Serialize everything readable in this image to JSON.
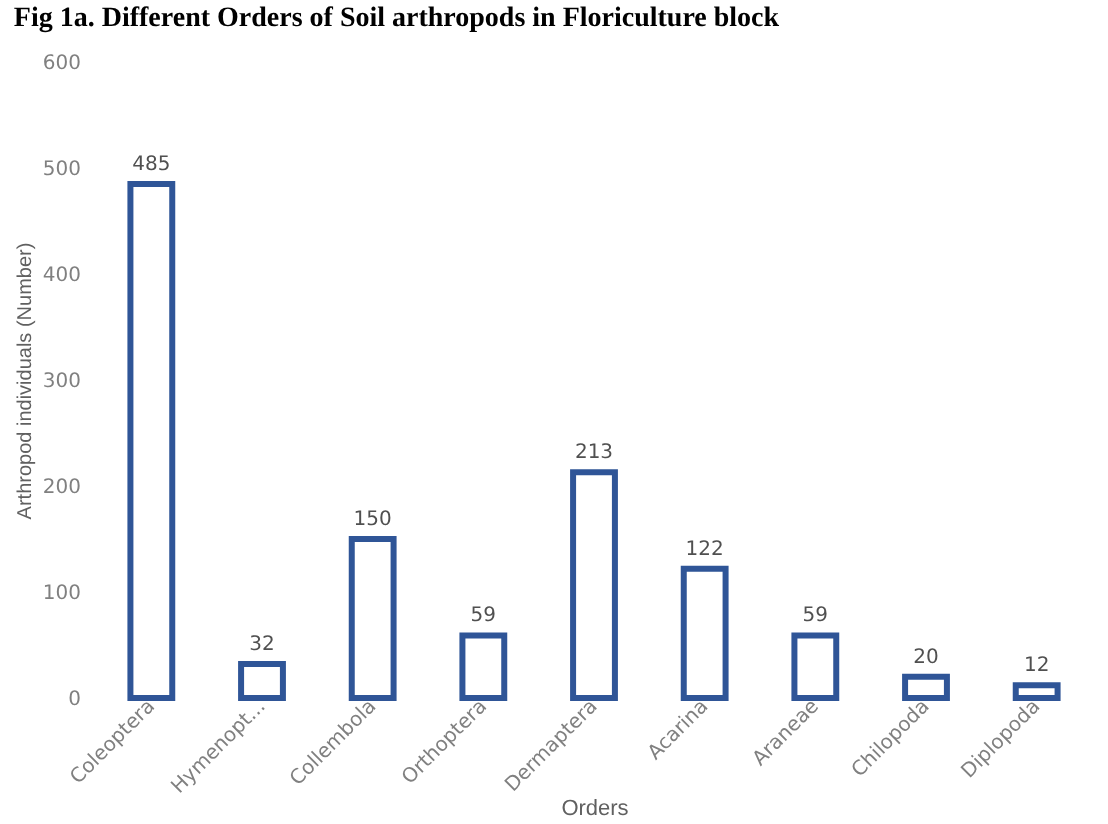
{
  "chart_data": {
    "type": "bar",
    "title": "Fig 1a. Different Orders of Soil arthropods in Floriculture block",
    "xlabel": "Orders",
    "ylabel": "Arthropod individuals (Number)",
    "categories": [
      "Coleoptera",
      "Hymenopt...",
      "Collembola",
      "Orthoptera",
      "Dermaptera",
      "Acarina",
      "Araneae",
      "Chilopoda",
      "Diplopoda"
    ],
    "values": [
      485,
      32,
      150,
      59,
      213,
      122,
      59,
      20,
      12
    ],
    "color": "#2f5597",
    "data_labels": true,
    "ylim": [
      0,
      600
    ],
    "yticks": [
      0,
      100,
      200,
      300,
      400,
      500,
      600
    ],
    "grid": false
  }
}
